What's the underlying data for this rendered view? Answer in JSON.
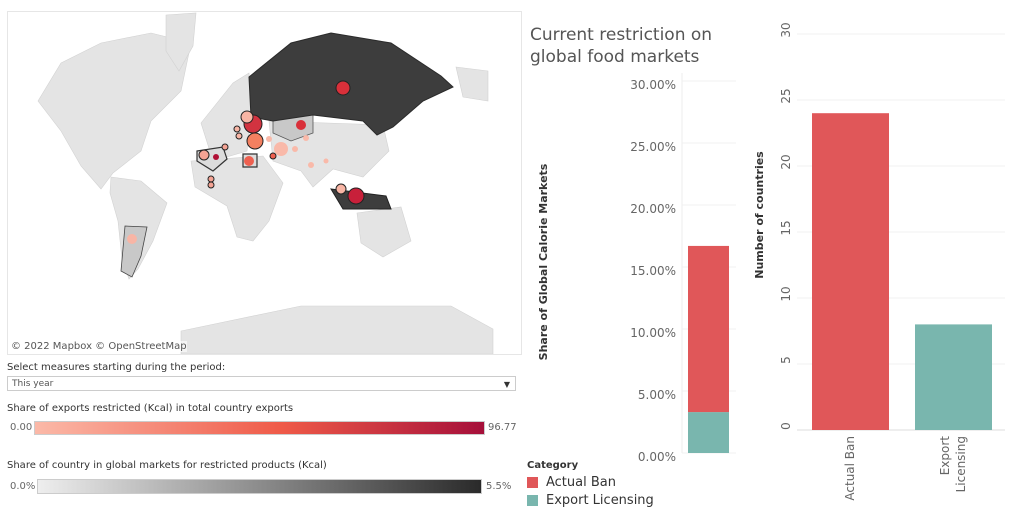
{
  "map": {
    "attribution": "© 2022 Mapbox  © OpenStreetMap",
    "colors": {
      "land": "#e4e4e4",
      "highlight": "#3d3d3d",
      "selected_gray": "#c8c8c8"
    }
  },
  "filter": {
    "label": "Select measures starting during the period:",
    "selected": "This year",
    "icon": "dropdown-arrow-icon"
  },
  "legend_exports": {
    "title": "Share of exports restricted (Kcal) in total country exports",
    "min": "0.00",
    "max": "96.77",
    "color_start": "#fbb9a8",
    "color_mid": "#ef5a48",
    "color_end": "#a50f3a"
  },
  "legend_share": {
    "title": "Share of country in global markets for restricted products (Kcal)",
    "min": "0.0%",
    "max": "5.5%",
    "color_start": "#eeeeee",
    "color_end": "#2a2a2a"
  },
  "title": {
    "line1": "Current restriction on",
    "line2": "global food markets"
  },
  "category_legend": {
    "title": "Category",
    "items": [
      {
        "label": "Actual Ban",
        "color": "#e05759"
      },
      {
        "label": "Export Licensing",
        "color": "#79b6ae"
      }
    ]
  },
  "chart_data": [
    {
      "type": "bar",
      "stacked": true,
      "ylabel": "Share of Global Calorie Markets",
      "ylim": [
        0,
        30
      ],
      "yticks": [
        "0.00%",
        "5.00%",
        "10.00%",
        "15.00%",
        "20.00%",
        "25.00%",
        "30.00%"
      ],
      "series": [
        {
          "name": "Export Licensing",
          "values": [
            3.3
          ],
          "color": "#79b6ae"
        },
        {
          "name": "Actual Ban",
          "values": [
            13.4
          ],
          "color": "#e05759"
        }
      ]
    },
    {
      "type": "bar",
      "ylabel": "Number of countries",
      "ylim": [
        0,
        30
      ],
      "yticks": [
        "0",
        "5",
        "10",
        "15",
        "20",
        "25",
        "30"
      ],
      "categories": [
        "Actual Ban",
        "Export Licensing"
      ],
      "category_lines": [
        [
          "Actual Ban"
        ],
        [
          "Export",
          "Licensing"
        ]
      ],
      "values": [
        24,
        8
      ],
      "colors": [
        "#e05759",
        "#79b6ae"
      ]
    }
  ]
}
